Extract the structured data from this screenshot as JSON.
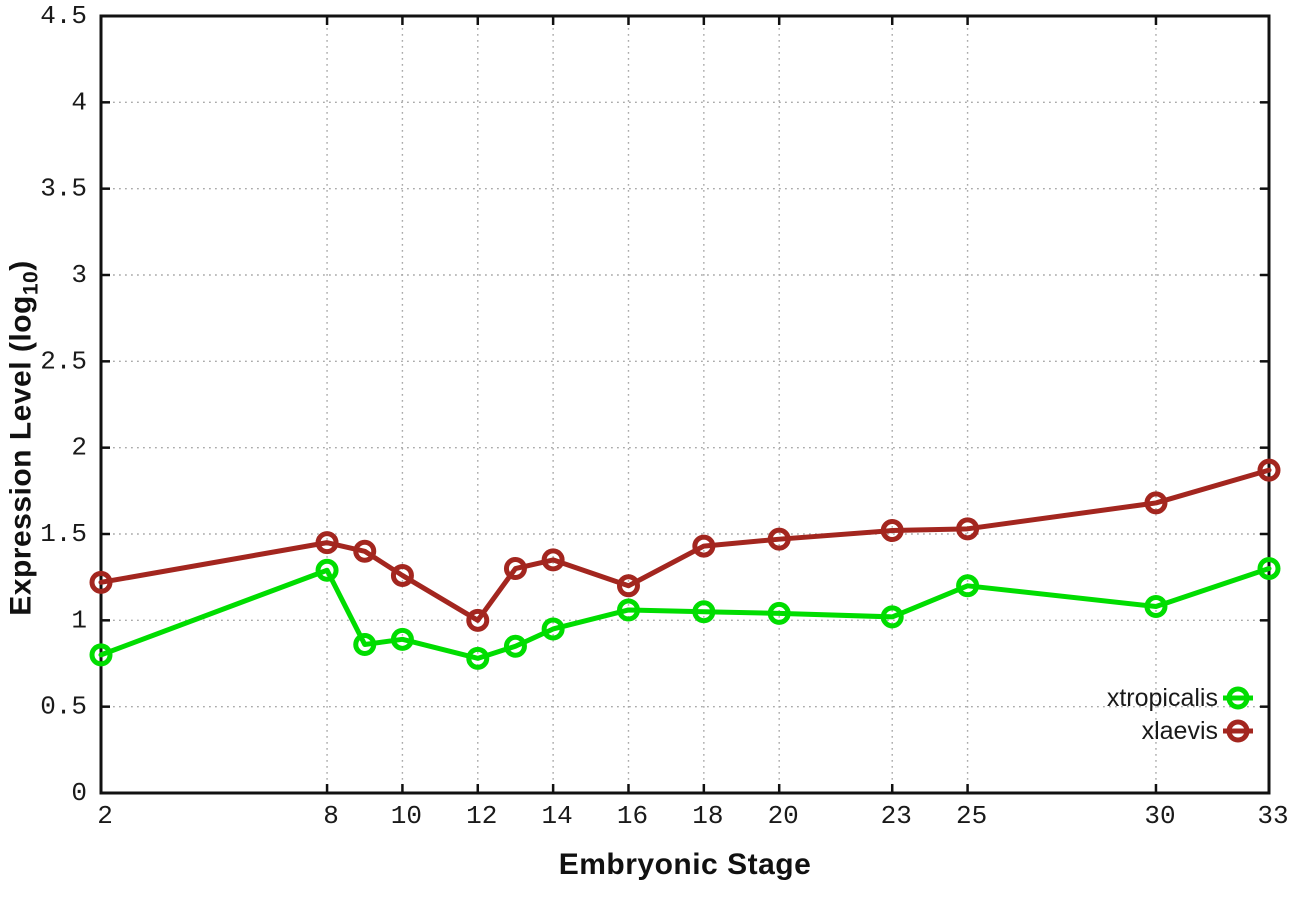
{
  "chart_data": {
    "type": "line",
    "title": "",
    "xlabel": "Embryonic Stage",
    "ylabel": "Expression Level (log10)",
    "ylabel_parts": {
      "prefix": "Expression Level (log",
      "sub": "10",
      "suffix": ")"
    },
    "xlim": [
      2,
      33
    ],
    "ylim": [
      0,
      4.5
    ],
    "ytick_step": 0.5,
    "x_tick_values": [
      2,
      8,
      10,
      12,
      14,
      16,
      18,
      20,
      23,
      25,
      30,
      33
    ],
    "x_tick_labels": [
      "2",
      "8",
      "10",
      "12",
      "14",
      "16",
      "18",
      "20",
      "23",
      "25",
      "30",
      "33"
    ],
    "y_tick_labels": [
      "0",
      "0.5",
      "1",
      "1.5",
      "2",
      "2.5",
      "3",
      "3.5",
      "4",
      "4.5"
    ],
    "categories": [
      2,
      8,
      9,
      10,
      12,
      13,
      14,
      16,
      18,
      20,
      23,
      25,
      30,
      33
    ],
    "series": [
      {
        "name": "xtropicalis",
        "color": "#00dd00",
        "marker": "open-circle",
        "values": [
          0.8,
          1.29,
          0.86,
          0.89,
          0.78,
          0.85,
          0.95,
          1.06,
          1.05,
          1.04,
          1.02,
          1.2,
          1.08,
          1.3
        ]
      },
      {
        "name": "xlaevis",
        "color": "#a3261f",
        "marker": "open-circle",
        "values": [
          1.22,
          1.45,
          1.4,
          1.26,
          1.0,
          1.3,
          1.35,
          1.2,
          1.43,
          1.47,
          1.52,
          1.53,
          1.68,
          1.87
        ]
      }
    ],
    "grid": true,
    "grid_color": "#aaaaaa",
    "border_color": "#111111",
    "tick_label_color": "#1a1a1a",
    "legend_position": "bottom-right"
  }
}
